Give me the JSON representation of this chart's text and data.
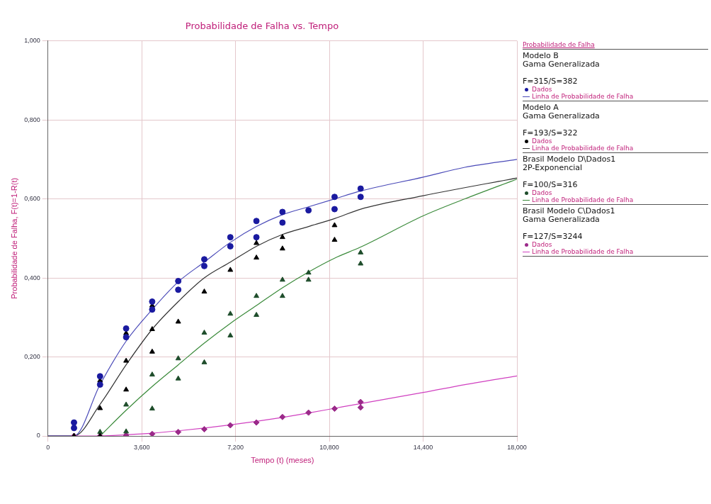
{
  "chart_data": {
    "type": "scatter",
    "title": "Probabilidade de Falha vs. Tempo",
    "xlabel": "Tempo (t) (meses)",
    "ylabel": "Probabilidade de Falha, F(t)=1-R(t)",
    "legend_title": "Probabilidade de Falha",
    "annotations": [
      "Modelo B\nGama Generalizada\n\nF=315/S=382",
      "Modelo A\nGama Generalizada\n\nF=193/S=322",
      "Brasil Modelo D\\Dados1\n2P-Exponencial\n\nF=100/S=316",
      "Brasil Modelo C\\Dados1\nGama Generalizada\n\nF=127/S=3244"
    ],
    "xlim": [
      0,
      18
    ],
    "ylim": [
      0,
      1
    ],
    "xticks": [
      {
        "value": 0,
        "label": "0"
      },
      {
        "value": 3.6,
        "label": "3,600"
      },
      {
        "value": 7.2,
        "label": "7,200"
      },
      {
        "value": 10.8,
        "label": "10,800"
      },
      {
        "value": 14.4,
        "label": "14,400"
      },
      {
        "value": 18,
        "label": "18,000"
      }
    ],
    "yticks": [
      {
        "value": 0,
        "label": "0"
      },
      {
        "value": 0.2,
        "label": "0,200"
      },
      {
        "value": 0.4,
        "label": "0,400"
      },
      {
        "value": 0.6,
        "label": "0,600"
      },
      {
        "value": 0.8,
        "label": "0,800"
      },
      {
        "value": 1,
        "label": "1,000"
      }
    ],
    "grid": true,
    "legend": "right",
    "series": [
      {
        "name": "Dados",
        "marker": "circle",
        "color": "#1a1aa0",
        "x": [
          1,
          1,
          2,
          2,
          3,
          3,
          4,
          4,
          5,
          5,
          6,
          6,
          7,
          7,
          8,
          8,
          9,
          9,
          10,
          11,
          11,
          12,
          12
        ],
        "values": [
          0.034,
          0.02,
          0.151,
          0.13,
          0.272,
          0.25,
          0.34,
          0.32,
          0.392,
          0.37,
          0.447,
          0.43,
          0.503,
          0.48,
          0.544,
          0.503,
          0.567,
          0.54,
          0.571,
          0.605,
          0.574,
          0.626,
          0.605
        ]
      },
      {
        "name": "Linha de Probabilidade de Falha",
        "type": "line",
        "marker": "none",
        "color": "#4a4ab8",
        "x": [
          0,
          1,
          2,
          3,
          4,
          5,
          6,
          7,
          8,
          9,
          10,
          11,
          12,
          14.4,
          16,
          18
        ],
        "values": [
          0,
          0,
          0.13,
          0.24,
          0.32,
          0.39,
          0.44,
          0.49,
          0.53,
          0.56,
          0.58,
          0.6,
          0.62,
          0.655,
          0.68,
          0.7
        ]
      },
      {
        "name": "Dados",
        "marker": "triangle",
        "color": "#000000",
        "x": [
          1,
          2,
          2,
          2,
          3,
          3,
          3,
          4,
          4,
          4,
          5,
          6,
          7,
          8,
          8,
          9,
          9,
          11,
          11
        ],
        "values": [
          0,
          0.14,
          0.07,
          0,
          0.26,
          0.19,
          0.117,
          0.33,
          0.27,
          0.213,
          0.289,
          0.365,
          0.42,
          0.488,
          0.451,
          0.503,
          0.474,
          0.533,
          0.496
        ]
      },
      {
        "name": "Linha de Probabilidade de Falha",
        "type": "line",
        "marker": "none",
        "color": "#333333",
        "x": [
          0,
          1,
          2,
          3,
          4,
          5,
          6,
          7,
          8,
          9,
          10,
          11,
          12,
          14.4,
          18
        ],
        "values": [
          0,
          0,
          0.08,
          0.18,
          0.27,
          0.34,
          0.4,
          0.44,
          0.48,
          0.51,
          0.53,
          0.55,
          0.574,
          0.608,
          0.653
        ]
      },
      {
        "name": "Dados",
        "marker": "triangle",
        "color": "#1e4d2b",
        "x": [
          2,
          3,
          3,
          4,
          4,
          5,
          5,
          6,
          6,
          7,
          7,
          8,
          8,
          9,
          9,
          10,
          10,
          12,
          12
        ],
        "values": [
          0.01,
          0.079,
          0.011,
          0.155,
          0.069,
          0.196,
          0.145,
          0.261,
          0.186,
          0.309,
          0.254,
          0.354,
          0.306,
          0.395,
          0.354,
          0.413,
          0.395,
          0.464,
          0.436
        ]
      },
      {
        "name": "Linha de Probabilidade de Falha",
        "type": "line",
        "marker": "none",
        "color": "#3a8a3a",
        "x": [
          2,
          3,
          4,
          5,
          6,
          7,
          8,
          9,
          10,
          11,
          12,
          14.4,
          16,
          18
        ],
        "values": [
          0,
          0.065,
          0.125,
          0.18,
          0.235,
          0.285,
          0.33,
          0.375,
          0.415,
          0.45,
          0.478,
          0.557,
          0.6,
          0.65
        ]
      },
      {
        "name": "Dados",
        "marker": "diamond",
        "color": "#9b2a8a",
        "x": [
          1,
          2,
          3,
          4,
          5,
          6,
          7,
          8,
          9,
          10,
          11,
          12,
          12
        ],
        "values": [
          0,
          0,
          0.002,
          0.005,
          0.01,
          0.017,
          0.027,
          0.034,
          0.048,
          0.059,
          0.069,
          0.086,
          0.072
        ]
      },
      {
        "name": "Linha de Probabilidade de Falha",
        "type": "line",
        "marker": "none",
        "color": "#d040c0",
        "x": [
          0,
          2,
          3,
          4,
          5,
          6,
          7,
          8,
          9,
          10,
          11,
          12,
          14.4,
          16,
          18
        ],
        "values": [
          0,
          0,
          0.003,
          0.007,
          0.013,
          0.02,
          0.028,
          0.037,
          0.047,
          0.058,
          0.07,
          0.082,
          0.11,
          0.13,
          0.152
        ]
      }
    ]
  }
}
